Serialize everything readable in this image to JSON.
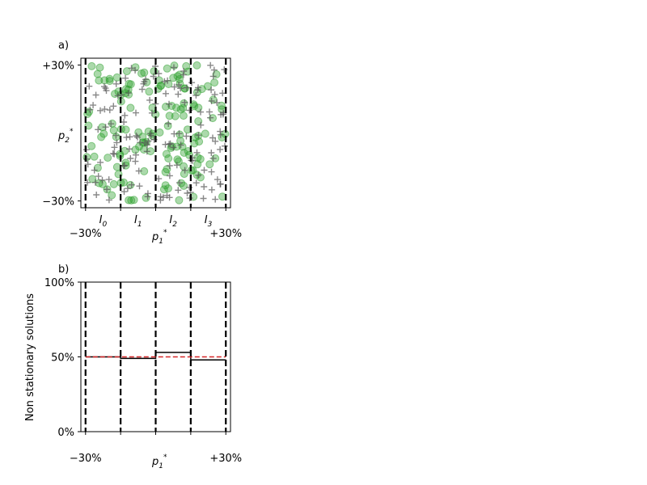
{
  "colors": {
    "scatter_fill": "#2ca02c",
    "cross": "#555555",
    "boundary": "#000000",
    "step_line": "#000000",
    "reference_line": "#d62728",
    "axes": "#000000"
  },
  "chart_data": [
    {
      "panel": "a)",
      "type": "scatter",
      "xlabel": "p1*",
      "ylabel": "p2*",
      "x_range": [
        -32,
        32
      ],
      "y_range": [
        -33,
        33
      ],
      "x_tick_labels": [
        {
          "x": -30,
          "label": "−30%"
        },
        {
          "x": 30,
          "label": "+30%"
        }
      ],
      "y_tick_labels": [
        {
          "y": -30,
          "label": "−30%"
        },
        {
          "y": 30,
          "label": "+30%"
        }
      ],
      "interval_labels": [
        {
          "x": -22.5,
          "label": "I0"
        },
        {
          "x": -7.5,
          "label": "I1"
        },
        {
          "x": 7.5,
          "label": "I2"
        },
        {
          "x": 22.5,
          "label": "I3"
        }
      ],
      "boundaries": [
        -30,
        -15,
        0,
        15,
        30
      ],
      "series": [
        {
          "marker": "circle",
          "count": 160
        },
        {
          "marker": "plus",
          "count": 160
        }
      ],
      "grid": false
    },
    {
      "panel": "b)",
      "type": "line",
      "xlabel": "p1*",
      "ylabel": "Non stationary solutions",
      "x_range": [
        -32,
        32
      ],
      "y_range": [
        0,
        100
      ],
      "x_tick_labels": [
        {
          "x": -30,
          "label": "−30%"
        },
        {
          "x": 30,
          "label": "+30%"
        }
      ],
      "y_tick_labels": [
        {
          "y": 0,
          "label": "0%"
        },
        {
          "y": 50,
          "label": "50%"
        },
        {
          "y": 100,
          "label": "100%"
        }
      ],
      "boundaries": [
        -30,
        -15,
        0,
        15,
        30
      ],
      "step_values": [
        {
          "x0": -30,
          "x1": -15,
          "y": 50
        },
        {
          "x0": -15,
          "x1": 0,
          "y": 49
        },
        {
          "x0": 0,
          "x1": 15,
          "y": 53
        },
        {
          "x0": 15,
          "x1": 30,
          "y": 48
        }
      ],
      "reference_y": 50,
      "grid": false
    }
  ]
}
